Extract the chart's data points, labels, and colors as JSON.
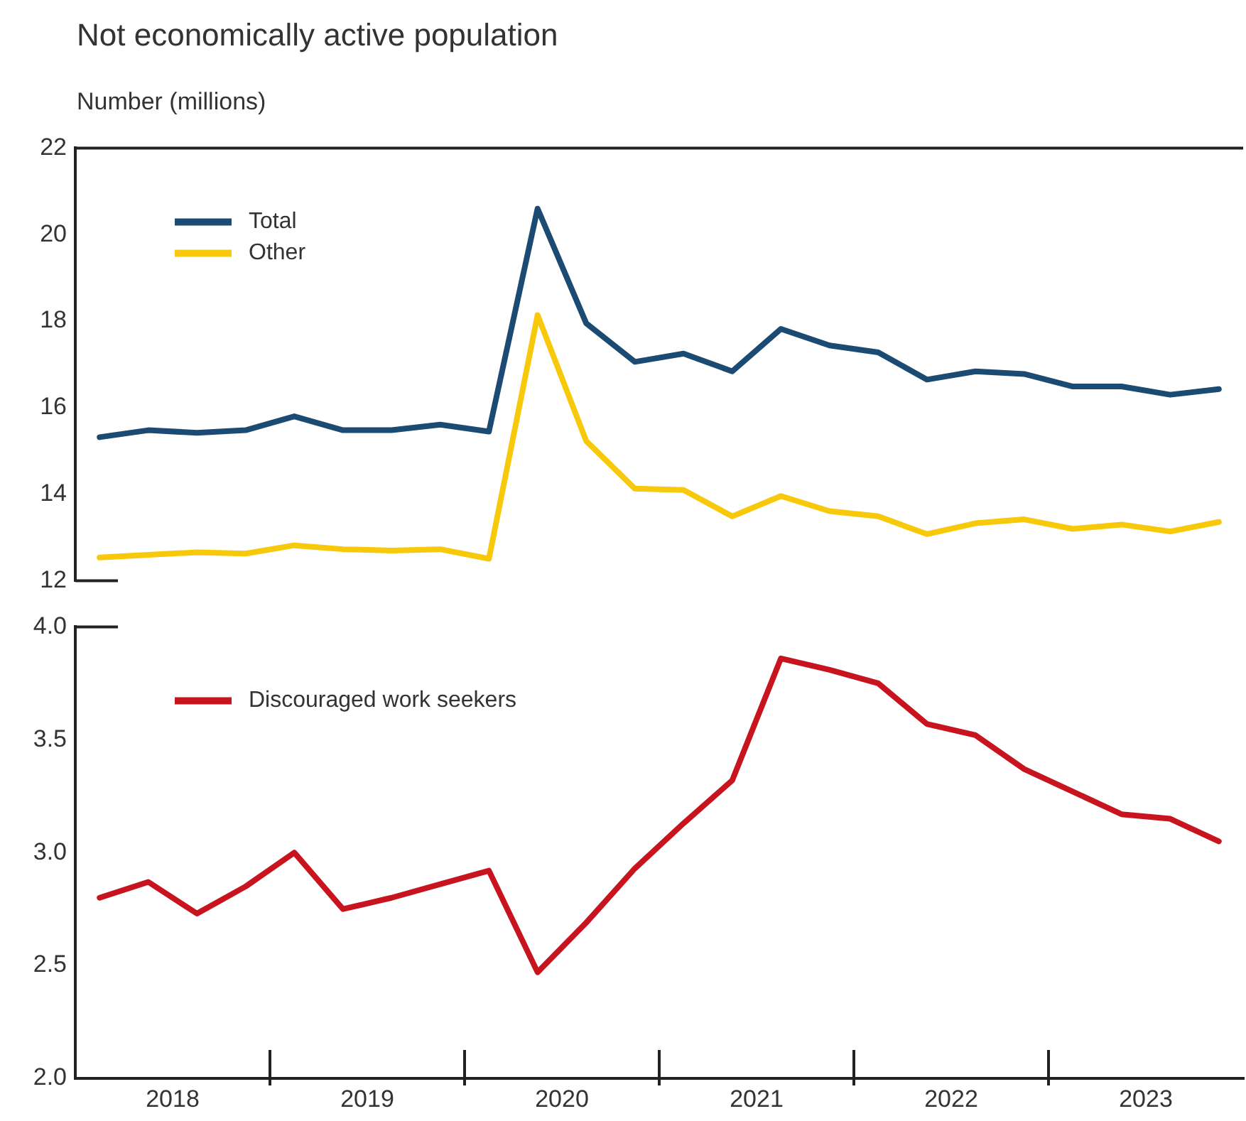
{
  "chart_data": [
    {
      "type": "line",
      "title": "Not economically active population",
      "ylabel": "Number (millions)",
      "x": [
        2018.125,
        2018.375,
        2018.625,
        2018.875,
        2019.125,
        2019.375,
        2019.625,
        2019.875,
        2020.125,
        2020.375,
        2020.625,
        2020.875,
        2021.125,
        2021.375,
        2021.625,
        2021.875,
        2022.125,
        2022.375,
        2022.625,
        2022.875,
        2023.125,
        2023.375,
        2023.625,
        2023.875
      ],
      "xlim": [
        2018,
        2024
      ],
      "ylim": [
        12,
        22
      ],
      "yticks": [
        12,
        14,
        16,
        18,
        20,
        22
      ],
      "tick_labels": "y",
      "grid": false,
      "legend": "top left",
      "series": [
        {
          "name": "Total",
          "color": "#1b4a72",
          "values": [
            15.32,
            15.48,
            15.42,
            15.48,
            15.8,
            15.48,
            15.48,
            15.61,
            15.45,
            20.6,
            17.95,
            17.06,
            17.25,
            16.84,
            17.82,
            17.44,
            17.28,
            16.65,
            16.84,
            16.78,
            16.49,
            16.49,
            16.3,
            16.43
          ]
        },
        {
          "name": "Other",
          "color": "#f8c80a",
          "values": [
            12.54,
            12.6,
            12.66,
            12.63,
            12.82,
            12.73,
            12.7,
            12.73,
            12.51,
            18.14,
            15.23,
            14.13,
            14.1,
            13.49,
            13.96,
            13.61,
            13.49,
            13.08,
            13.33,
            13.42,
            13.2,
            13.3,
            13.14,
            13.36
          ]
        }
      ]
    },
    {
      "type": "line",
      "x": [
        2018.125,
        2018.375,
        2018.625,
        2018.875,
        2019.125,
        2019.375,
        2019.625,
        2019.875,
        2020.125,
        2020.375,
        2020.625,
        2020.875,
        2021.125,
        2021.375,
        2021.625,
        2021.875,
        2022.125,
        2022.375,
        2022.625,
        2022.875,
        2023.125,
        2023.375,
        2023.625,
        2023.875
      ],
      "xlim": [
        2018,
        2024
      ],
      "xticks": [
        {
          "value": 2018.5,
          "label": "2018"
        },
        {
          "value": 2019,
          "label": null
        },
        {
          "value": 2019.5,
          "label": "2019"
        },
        {
          "value": 2020,
          "label": null
        },
        {
          "value": 2020.5,
          "label": "2020"
        },
        {
          "value": 2021,
          "label": null
        },
        {
          "value": 2021.5,
          "label": "2021"
        },
        {
          "value": 2022,
          "label": null
        },
        {
          "value": 2022.5,
          "label": "2022"
        },
        {
          "value": 2023,
          "label": null
        },
        {
          "value": 2023.5,
          "label": "2023"
        }
      ],
      "ylim": [
        2,
        4
      ],
      "yticks": [
        {
          "value": 2,
          "label": "2.0"
        },
        2.5,
        {
          "value": 3,
          "label": "3.0"
        },
        3.5,
        {
          "value": 4,
          "label": "4.0"
        }
      ],
      "grid": false,
      "legend": "top left",
      "series": [
        {
          "name": "Discouraged work seekers",
          "color": "#c8141e",
          "values": [
            2.8,
            2.87,
            2.73,
            2.85,
            3.0,
            2.75,
            2.8,
            2.86,
            2.92,
            2.47,
            2.69,
            2.93,
            3.13,
            3.32,
            3.86,
            3.81,
            3.75,
            3.57,
            3.52,
            3.37,
            3.27,
            3.17,
            3.15,
            3.05
          ]
        }
      ]
    }
  ]
}
